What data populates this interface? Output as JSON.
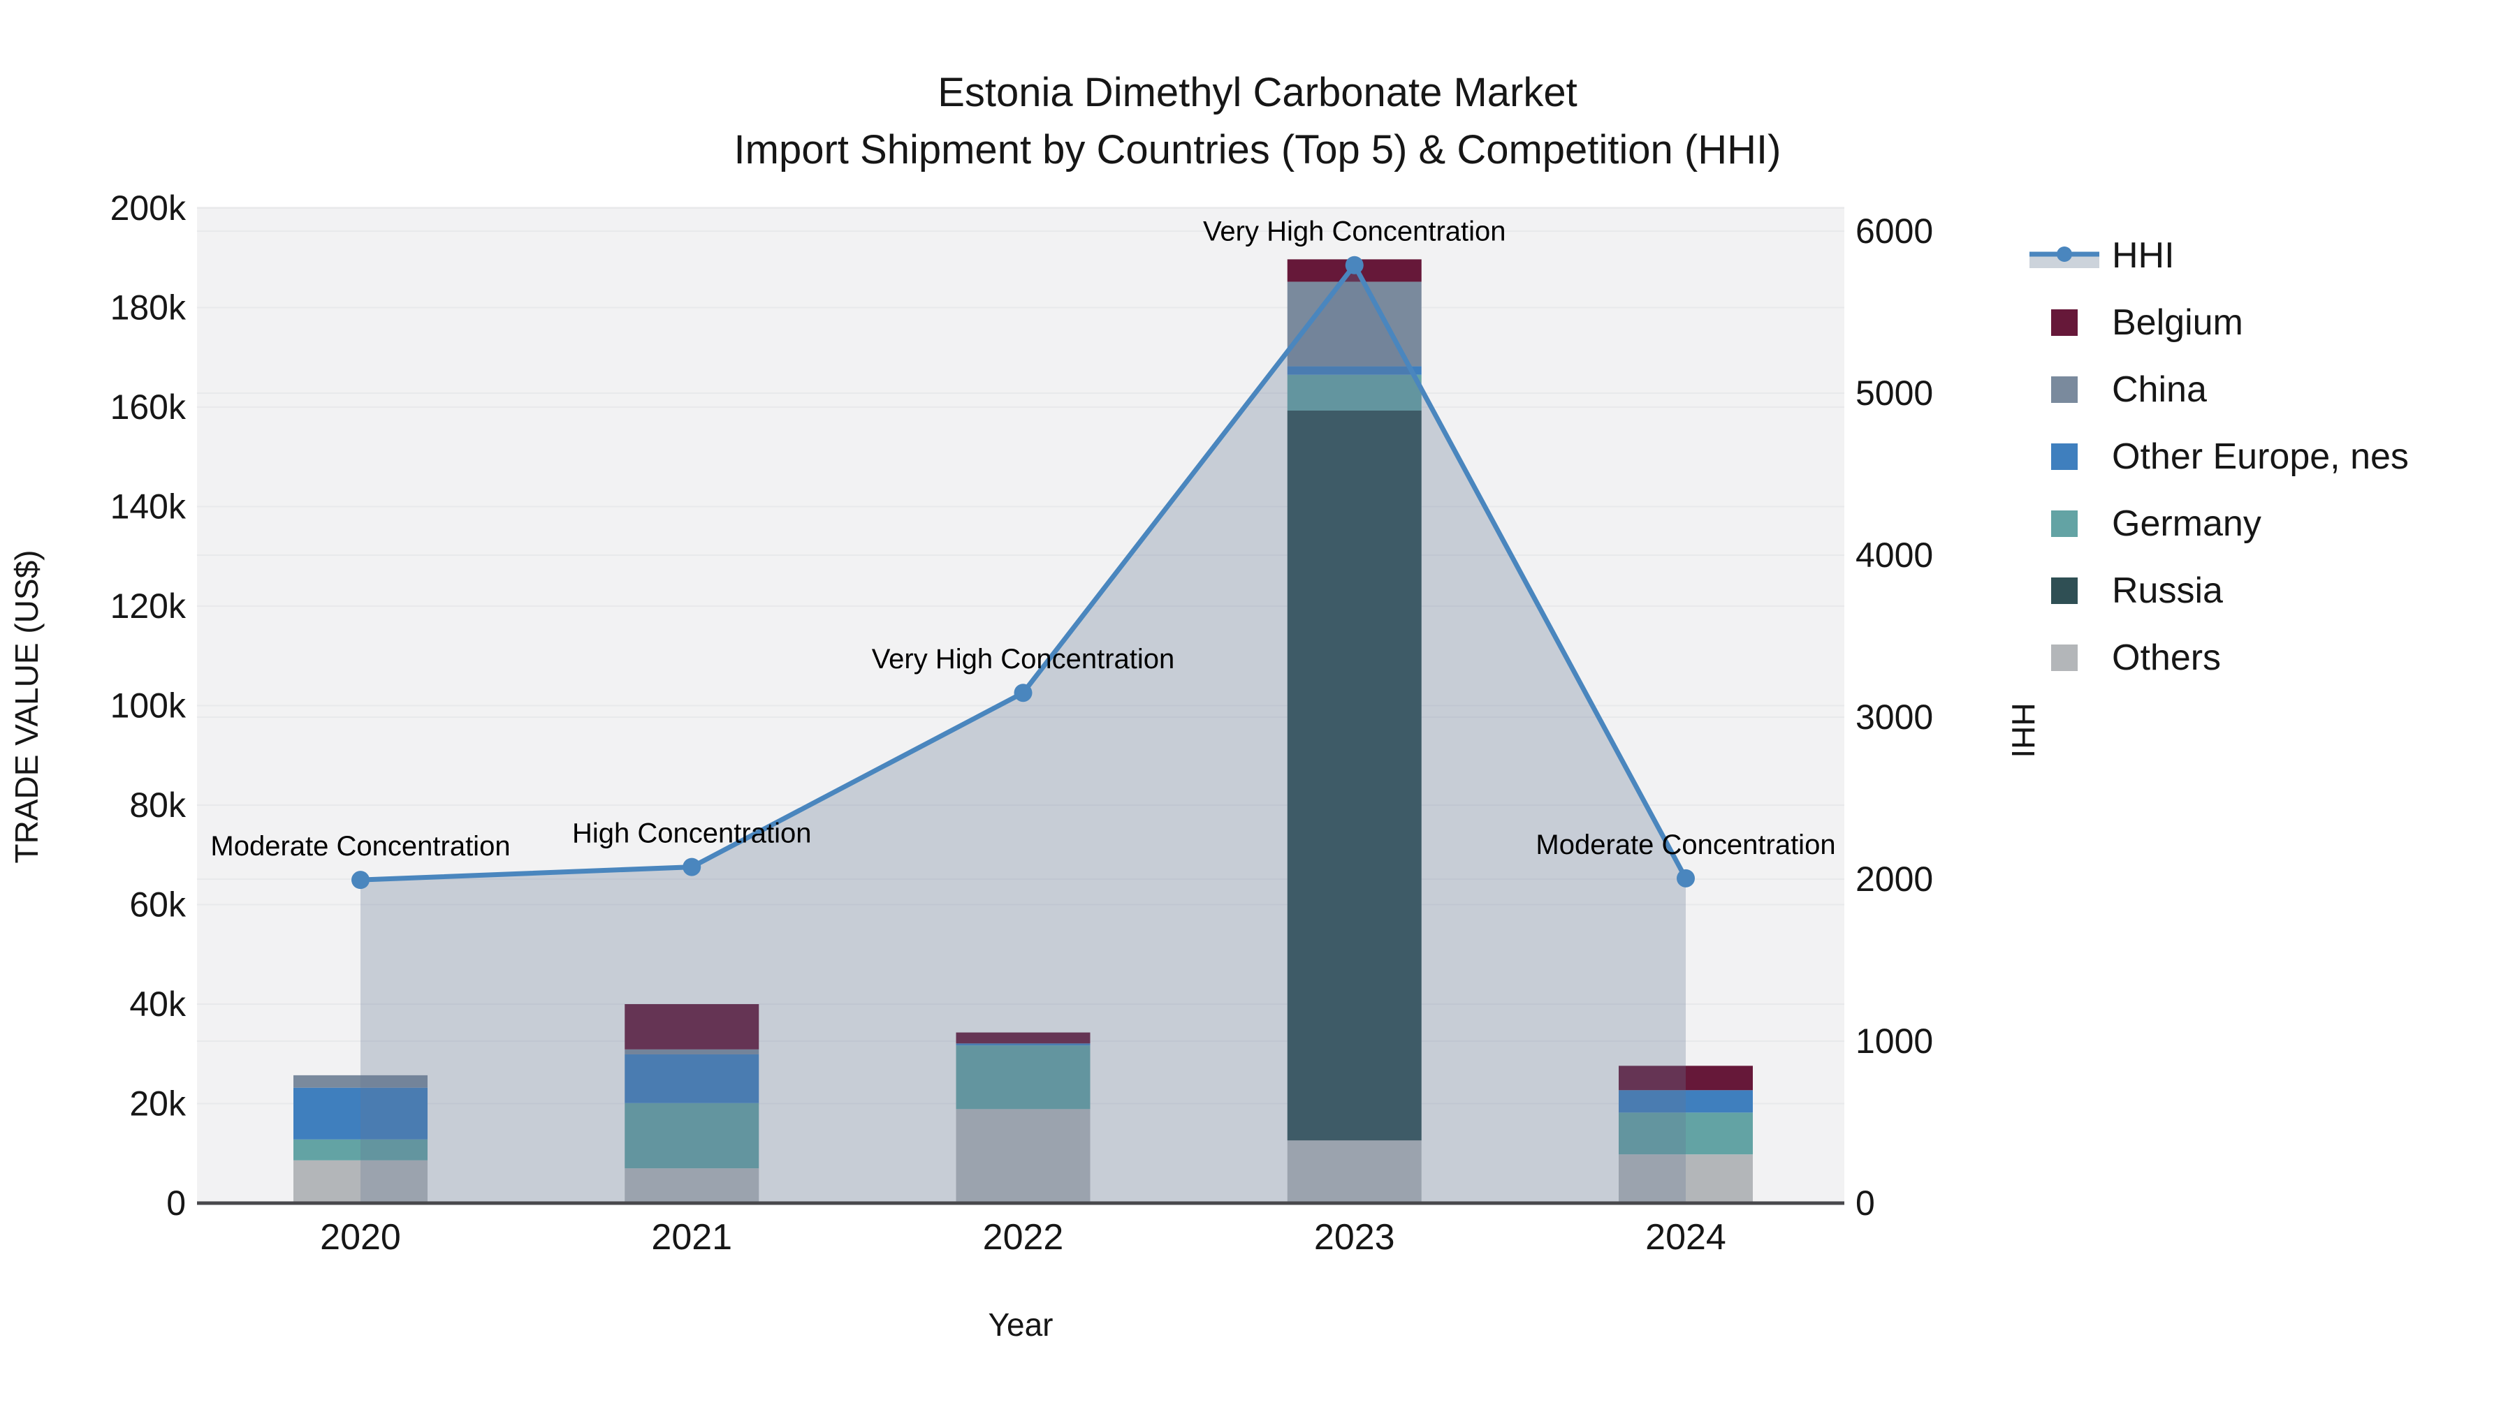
{
  "title": {
    "line1": "Estonia Dimethyl Carbonate Market",
    "line2": "Import Shipment by Countries (Top 5) & Competition (HHI)"
  },
  "axes": {
    "left": {
      "title": "TRADE VALUE (US$)",
      "tick_labels": [
        "0",
        "20k",
        "40k",
        "60k",
        "80k",
        "100k",
        "120k",
        "140k",
        "160k",
        "180k",
        "200k"
      ]
    },
    "right": {
      "title": "HHI",
      "tick_labels": [
        "0",
        "1000",
        "2000",
        "3000",
        "4000",
        "5000",
        "6000"
      ]
    },
    "x": {
      "title": "Year"
    }
  },
  "legend": {
    "items": [
      {
        "label": "HHI",
        "type": "line",
        "color": "#4a86be"
      },
      {
        "label": "Belgium",
        "type": "swatch",
        "color": "#661839"
      },
      {
        "label": "China",
        "type": "swatch",
        "color": "#7a8a9d"
      },
      {
        "label": "Other Europe, nes",
        "type": "swatch",
        "color": "#3f7fbe"
      },
      {
        "label": "Germany",
        "type": "swatch",
        "color": "#63a3a4"
      },
      {
        "label": "Russia",
        "type": "swatch",
        "color": "#2f4f54"
      },
      {
        "label": "Others",
        "type": "swatch",
        "color": "#b3b6b9"
      }
    ]
  },
  "chart_data": {
    "type": "bar+line",
    "categories": [
      "2020",
      "2021",
      "2022",
      "2023",
      "2024"
    ],
    "bar_value_unit": "US$",
    "stack_order_bottom_to_top": [
      "Others",
      "Russia",
      "Germany",
      "Other Europe, nes",
      "China",
      "Belgium"
    ],
    "series": [
      {
        "name": "Others",
        "color": "#b3b6b9",
        "values": [
          8600,
          7000,
          18900,
          12600,
          9800
        ]
      },
      {
        "name": "Russia",
        "color": "#2f4f54",
        "values": [
          0,
          0,
          0,
          146700,
          0
        ]
      },
      {
        "name": "Germany",
        "color": "#63a3a4",
        "values": [
          4200,
          13100,
          12800,
          7200,
          8400
        ]
      },
      {
        "name": "Other Europe, nes",
        "color": "#3f7fbe",
        "values": [
          10400,
          9800,
          400,
          1700,
          4500
        ]
      },
      {
        "name": "China",
        "color": "#7a8a9d",
        "values": [
          2500,
          1000,
          0,
          17000,
          0
        ]
      },
      {
        "name": "Belgium",
        "color": "#661839",
        "values": [
          0,
          9100,
          2200,
          4500,
          4900
        ]
      }
    ],
    "line_series": {
      "name": "HHI",
      "color": "#4a86be",
      "area_fill": "rgba(100,120,148,0.30)",
      "values": [
        1995,
        2075,
        3150,
        5790,
        2005
      ]
    },
    "annotations": [
      {
        "x": "2020",
        "text": "Moderate Concentration"
      },
      {
        "x": "2021",
        "text": "High Concentration"
      },
      {
        "x": "2022",
        "text": "Very High Concentration"
      },
      {
        "x": "2023",
        "text": "Very High Concentration"
      },
      {
        "x": "2024",
        "text": "Moderate Concentration"
      }
    ],
    "ylim_left": [
      0,
      200000
    ],
    "ylim_right": [
      0,
      6000
    ],
    "grid": true,
    "legend_position": "right",
    "plot_bg": "#f2f2f3",
    "grid_color": "#e8e9eb",
    "axisline_color": "#48484c"
  }
}
